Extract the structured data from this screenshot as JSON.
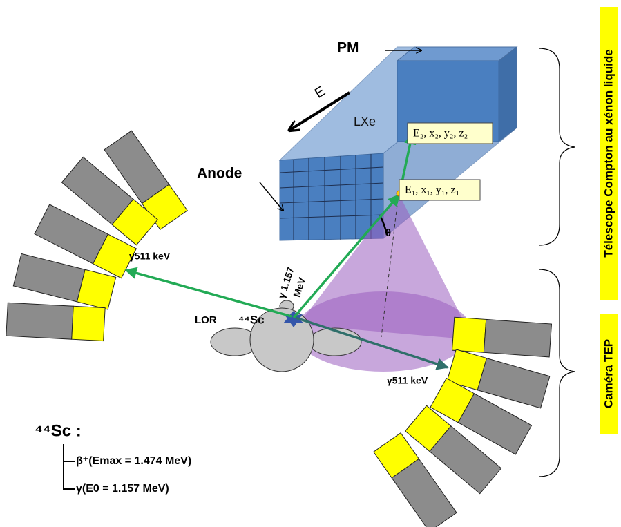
{
  "labels": {
    "pm": "PM",
    "energy_arrow": "E",
    "lxe": "LXe",
    "anode": "Anode",
    "point2": "E₂, x₂, y₂, z₂",
    "point1": "E₁, x₁, y₁, z₁",
    "theta": "θ",
    "gamma_left": "γ511 keV",
    "gamma_prompt": [
      "γ 1.157",
      "MeV"
    ],
    "lor": "LOR",
    "source": "⁴⁴Sc",
    "gamma_right": "γ511 keV"
  },
  "decay": {
    "title": "⁴⁴Sc :",
    "branches": [
      "β⁺(Emax = 1.474 MeV)",
      "γ(E0 = 1.157 MeV)"
    ]
  },
  "side_labels": [
    "Télescope Compton au xénon liquide",
    "Caméra TEP"
  ]
}
